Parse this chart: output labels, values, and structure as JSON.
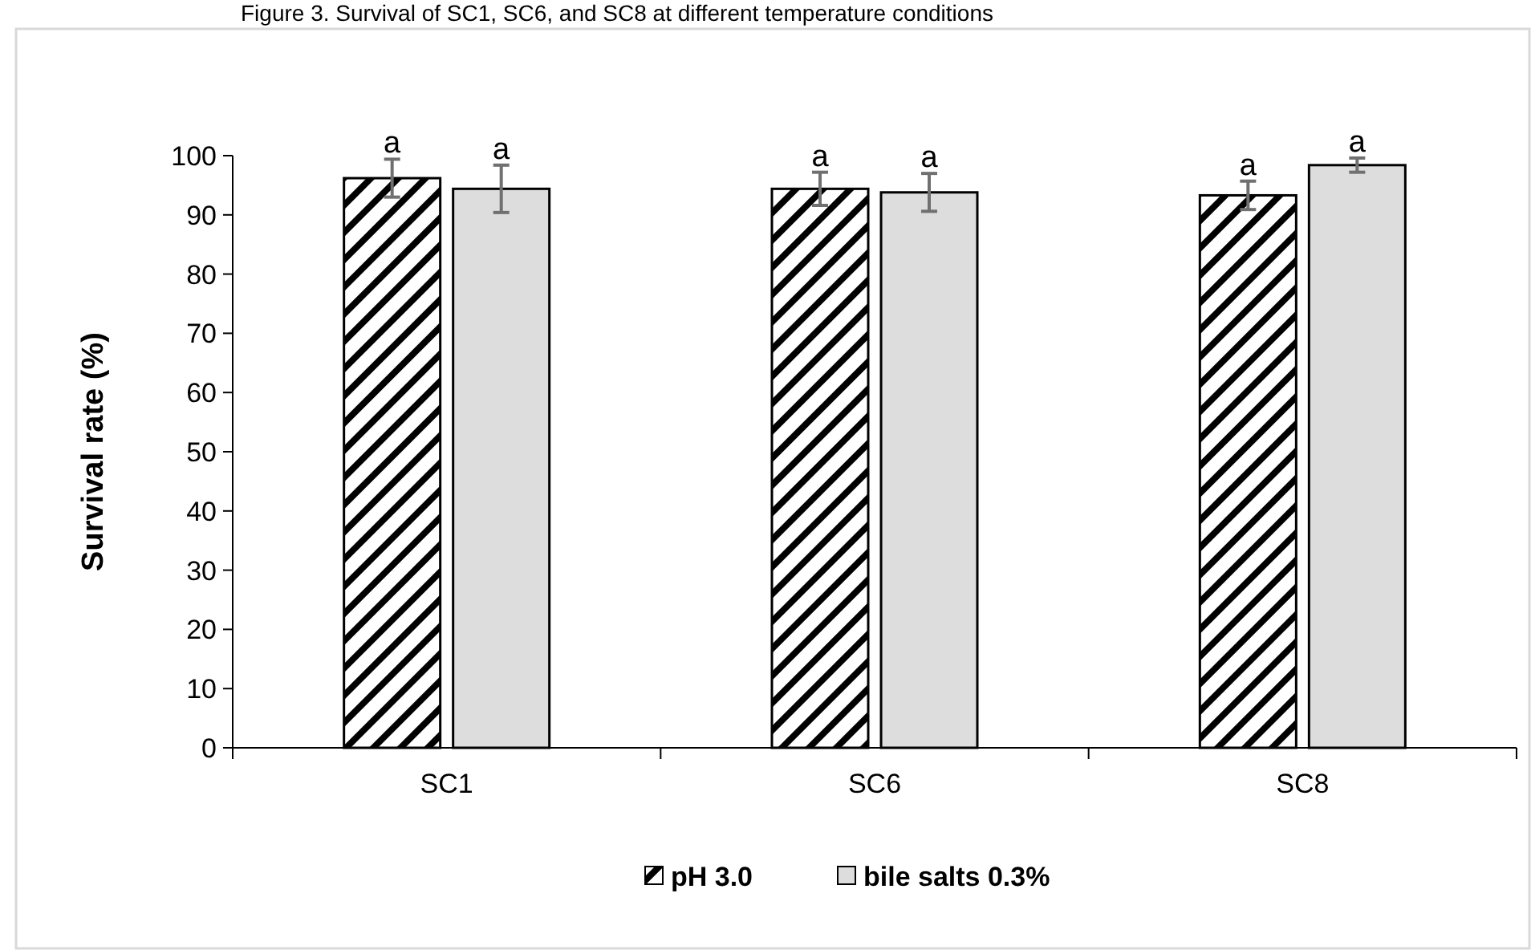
{
  "chart_data": {
    "type": "bar",
    "title": "Figure 3. Survival of SC1, SC6, and SC8 at different temperature conditions",
    "ylabel": "Survival rate (%)",
    "categories": [
      "SC1",
      "SC6",
      "SC8"
    ],
    "series": [
      {
        "name": "pH 3.0",
        "color": "#000000",
        "values": [
          96.2,
          94.4,
          93.3
        ],
        "errors": [
          3.2,
          2.8,
          2.4
        ],
        "value_labels": [
          "a",
          "a",
          "a"
        ]
      },
      {
        "name": "bile salts 0.3%",
        "color": "#dddddd",
        "values": [
          94.4,
          93.8,
          98.4
        ],
        "errors": [
          4,
          3.2,
          1.2
        ],
        "value_labels": [
          "a",
          "a",
          "a"
        ]
      }
    ],
    "ylim": [
      0,
      100
    ],
    "yticks": [
      0,
      10,
      20,
      30,
      40,
      50,
      60,
      70,
      80,
      90,
      100
    ],
    "grid": false,
    "legend": "bottom"
  }
}
